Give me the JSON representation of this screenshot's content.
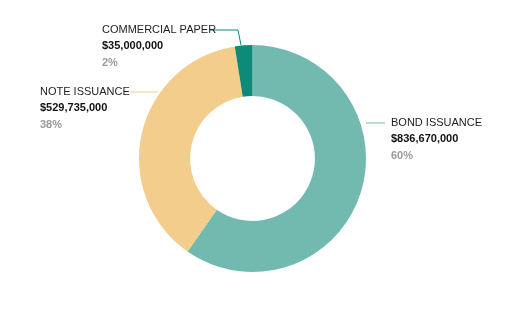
{
  "chart_data": {
    "type": "doughnut",
    "categories": [
      "BOND ISSUANCE",
      "NOTE ISSUANCE",
      "COMMERCIAL PAPER"
    ],
    "values": [
      836670000,
      529735000,
      35000000
    ],
    "value_labels": [
      "$836,670,000",
      "$529,735,000",
      "$35,000,000"
    ],
    "shares": [
      60,
      38,
      2
    ],
    "share_labels": [
      "60%",
      "38%",
      "2%"
    ],
    "colors": [
      "#72b9b0",
      "#f2cd8c",
      "#0e8a78"
    ],
    "data_labels": true,
    "legend": false
  }
}
